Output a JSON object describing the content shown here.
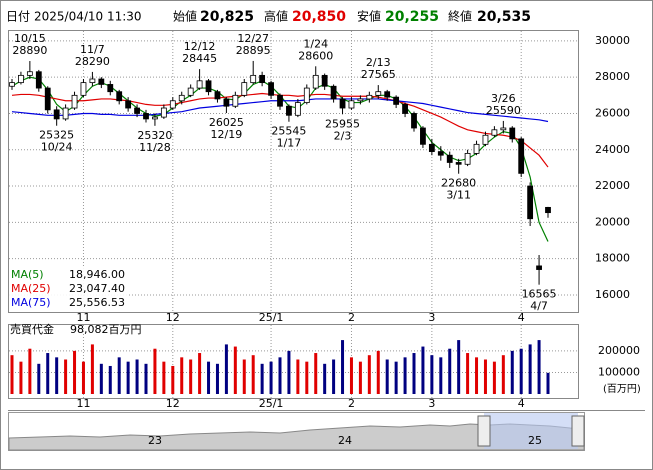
{
  "chart_data": {
    "type": "candlestick",
    "header": {
      "date_label": "日付",
      "date": "2025/04/10 11:30",
      "open_label": "始値",
      "open": "20,825",
      "high_label": "高値",
      "high": "20,850",
      "low_label": "安値",
      "low": "20,255",
      "close_label": "終値",
      "close": "20,535"
    },
    "categories": [
      null,
      null,
      null,
      null,
      null,
      null,
      null,
      null,
      "11",
      null,
      null,
      null,
      null,
      null,
      null,
      null,
      null,
      null,
      "12",
      null,
      null,
      null,
      null,
      null,
      null,
      null,
      null,
      null,
      null,
      "25/1",
      null,
      null,
      null,
      null,
      null,
      null,
      null,
      null,
      "2",
      null,
      null,
      null,
      null,
      null,
      null,
      null,
      null,
      "3",
      null,
      null,
      null,
      null,
      null,
      null,
      null,
      null,
      null,
      "4",
      null,
      null,
      null
    ],
    "ohlc": [
      [
        27500,
        27900,
        27300,
        27700
      ],
      [
        27700,
        28300,
        27600,
        28100
      ],
      [
        28100,
        28890,
        27900,
        28300
      ],
      [
        28300,
        28400,
        27200,
        27400
      ],
      [
        27400,
        27500,
        26000,
        26200
      ],
      [
        26200,
        26400,
        25325,
        25700
      ],
      [
        25700,
        26500,
        25600,
        26300
      ],
      [
        26300,
        27200,
        26200,
        27000
      ],
      [
        27000,
        27900,
        26900,
        27700
      ],
      [
        27700,
        28290,
        27500,
        27900
      ],
      [
        27900,
        28000,
        27400,
        27600
      ],
      [
        27600,
        27800,
        27000,
        27200
      ],
      [
        27200,
        27300,
        26500,
        26700
      ],
      [
        26700,
        26900,
        26100,
        26300
      ],
      [
        26300,
        26500,
        25800,
        26000
      ],
      [
        26000,
        26200,
        25500,
        25700
      ],
      [
        25700,
        26000,
        25320,
        25800
      ],
      [
        25800,
        26500,
        25700,
        26300
      ],
      [
        26300,
        26900,
        26200,
        26700
      ],
      [
        26700,
        27200,
        26500,
        27000
      ],
      [
        27000,
        27600,
        26900,
        27400
      ],
      [
        27400,
        28445,
        27300,
        27800
      ],
      [
        27800,
        27900,
        27000,
        27200
      ],
      [
        27200,
        27300,
        26600,
        26800
      ],
      [
        26800,
        26900,
        26025,
        26400
      ],
      [
        26400,
        27200,
        26300,
        27000
      ],
      [
        27000,
        27900,
        26900,
        27700
      ],
      [
        27700,
        28895,
        27600,
        28100
      ],
      [
        28100,
        28300,
        27500,
        27700
      ],
      [
        27700,
        27800,
        26800,
        27000
      ],
      [
        27000,
        27100,
        26200,
        26400
      ],
      [
        26400,
        26500,
        25545,
        25900
      ],
      [
        25900,
        26800,
        25800,
        26600
      ],
      [
        26600,
        27600,
        26500,
        27400
      ],
      [
        27400,
        28600,
        27300,
        28100
      ],
      [
        28100,
        28200,
        27300,
        27500
      ],
      [
        27500,
        27600,
        26600,
        26800
      ],
      [
        26800,
        26900,
        25955,
        26300
      ],
      [
        26300,
        26900,
        26200,
        26700
      ],
      [
        26700,
        27000,
        26500,
        26800
      ],
      [
        26800,
        27200,
        26600,
        27000
      ],
      [
        27000,
        27565,
        26800,
        27200
      ],
      [
        27200,
        27300,
        26700,
        26900
      ],
      [
        26900,
        27000,
        26300,
        26500
      ],
      [
        26500,
        26600,
        25800,
        26000
      ],
      [
        26000,
        26100,
        25000,
        25200
      ],
      [
        25200,
        25300,
        24100,
        24300
      ],
      [
        24300,
        24600,
        23700,
        23900
      ],
      [
        23900,
        24200,
        23400,
        23700
      ],
      [
        23700,
        23900,
        23000,
        23300
      ],
      [
        23300,
        23500,
        22680,
        23200
      ],
      [
        23200,
        24000,
        23100,
        23800
      ],
      [
        23800,
        24500,
        23700,
        24300
      ],
      [
        24300,
        25000,
        24200,
        24800
      ],
      [
        24800,
        25300,
        24700,
        25100
      ],
      [
        25100,
        25590,
        24900,
        25200
      ],
      [
        25200,
        25300,
        24400,
        24600
      ],
      [
        24600,
        24700,
        22500,
        22700
      ],
      [
        22000,
        22200,
        19800,
        20200
      ],
      [
        17600,
        18200,
        16565,
        17400
      ],
      [
        20825,
        20850,
        20255,
        20535
      ]
    ],
    "up_color": "#ffffff",
    "down_color": "#000000",
    "ma_series": [
      {
        "name": "MA(5)",
        "color": "#008000",
        "label_value": "18,946.00",
        "values": [
          27500,
          27800,
          28000,
          27900,
          27300,
          26500,
          26100,
          26400,
          27000,
          27500,
          27700,
          27500,
          27100,
          26700,
          26300,
          26000,
          25850,
          25950,
          26300,
          26700,
          27000,
          27400,
          27400,
          27200,
          26800,
          26750,
          27100,
          27600,
          27800,
          27500,
          27000,
          26400,
          26300,
          26700,
          27400,
          27600,
          27400,
          26800,
          26600,
          26600,
          26800,
          27000,
          27000,
          26800,
          26400,
          25800,
          25100,
          24400,
          24000,
          23600,
          23400,
          23500,
          23800,
          24300,
          24700,
          25000,
          24900,
          24100,
          22500,
          20000,
          18946
        ]
      },
      {
        "name": "MA(25)",
        "color": "#e00000",
        "label_value": "23,047.40",
        "values": [
          27000,
          27050,
          27050,
          27000,
          26900,
          26800,
          26700,
          26700,
          26700,
          26750,
          26800,
          26800,
          26750,
          26700,
          26600,
          26500,
          26450,
          26450,
          26500,
          26600,
          26700,
          26800,
          26850,
          26850,
          26900,
          26950,
          27000,
          27050,
          27100,
          27050,
          27000,
          27000,
          26950,
          27000,
          27050,
          27050,
          27000,
          26950,
          26950,
          26950,
          26950,
          26900,
          26800,
          26700,
          26550,
          26400,
          26200,
          26000,
          25800,
          25550,
          25300,
          25100,
          25000,
          24900,
          24850,
          24800,
          24700,
          24500,
          24100,
          23700,
          23047.4
        ]
      },
      {
        "name": "MA(75)",
        "color": "#0000e0",
        "label_value": "25,556.53",
        "values": [
          26100,
          26050,
          26000,
          25950,
          25900,
          25900,
          25900,
          25950,
          26000,
          26000,
          25950,
          25950,
          25900,
          25900,
          25900,
          25900,
          25950,
          26000,
          26050,
          26100,
          26200,
          26300,
          26350,
          26400,
          26450,
          26500,
          26550,
          26600,
          26650,
          26700,
          26700,
          26700,
          26700,
          26750,
          26800,
          26800,
          26800,
          26800,
          26800,
          26800,
          26800,
          26800,
          26750,
          26700,
          26650,
          26600,
          26550,
          26450,
          26350,
          26250,
          26150,
          26050,
          26000,
          25950,
          25900,
          25850,
          25800,
          25750,
          25700,
          25650,
          25556.53
        ]
      }
    ],
    "ylim": [
      15060,
      30600
    ],
    "yticks": [
      16000,
      18000,
      20000,
      22000,
      24000,
      26000,
      28000,
      30000
    ],
    "grid": true,
    "annotations": [
      {
        "date": "10/15",
        "price": 28890
      },
      {
        "date": "10/24",
        "price": 25325
      },
      {
        "date": "11/7",
        "price": 28290
      },
      {
        "date": "11/28",
        "price": 25320
      },
      {
        "date": "12/12",
        "price": 28445
      },
      {
        "date": "12/19",
        "price": 26025
      },
      {
        "date": "12/27",
        "price": 28895
      },
      {
        "date": "1/17",
        "price": 25545
      },
      {
        "date": "1/24",
        "price": 28600
      },
      {
        "date": "2/3",
        "price": 25955
      },
      {
        "date": "2/13",
        "price": 27565
      },
      {
        "date": "3/11",
        "price": 22680
      },
      {
        "date": "3/26",
        "price": 25590
      },
      {
        "date": "4/7",
        "price": 16565
      }
    ],
    "volume": {
      "title": "売買代金",
      "value_label": "98,082百万円",
      "unit": "(百万円)",
      "up_color": "#e00000",
      "down_color": "#000080",
      "values": [
        180000,
        150000,
        210000,
        140000,
        190000,
        170000,
        160000,
        200000,
        150000,
        230000,
        140000,
        130000,
        170000,
        150000,
        160000,
        140000,
        210000,
        150000,
        130000,
        170000,
        160000,
        190000,
        150000,
        140000,
        230000,
        220000,
        160000,
        180000,
        140000,
        150000,
        170000,
        200000,
        160000,
        150000,
        190000,
        140000,
        160000,
        250000,
        170000,
        150000,
        180000,
        200000,
        160000,
        150000,
        170000,
        190000,
        220000,
        180000,
        170000,
        210000,
        250000,
        190000,
        170000,
        160000,
        150000,
        180000,
        200000,
        210000,
        230000,
        250000,
        98082
      ],
      "ylim": [
        0,
        320000
      ],
      "yticks": [
        100000,
        200000
      ]
    },
    "navigator": {
      "labels": [
        "23",
        "24",
        "25"
      ]
    }
  }
}
